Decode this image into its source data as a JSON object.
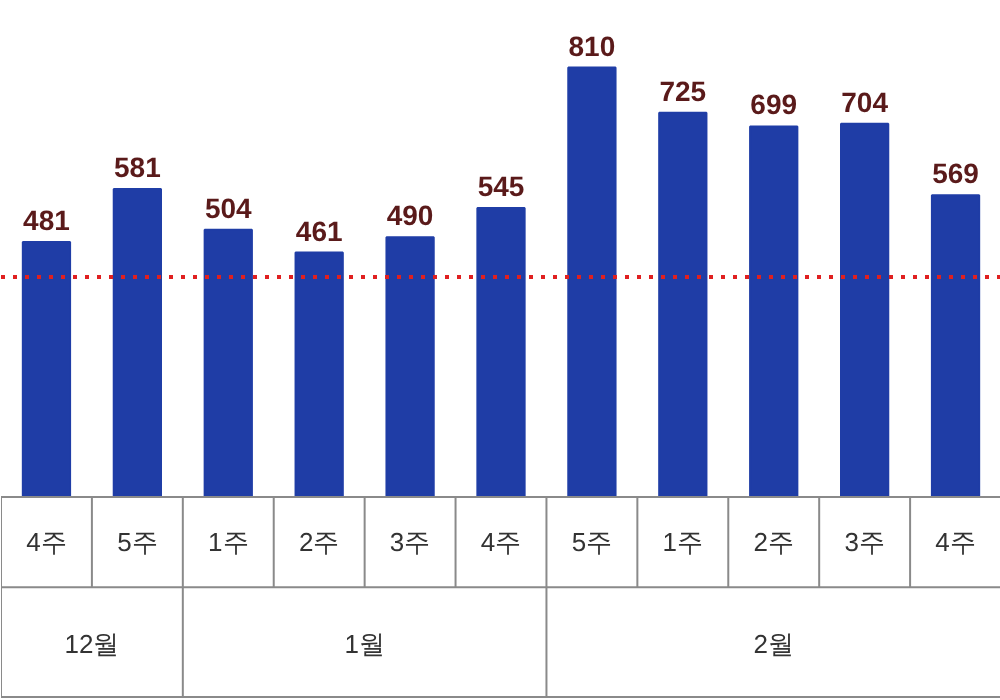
{
  "chart_data": {
    "type": "bar",
    "categories": [
      "4주",
      "5주",
      "1주",
      "2주",
      "3주",
      "4주",
      "5주",
      "1주",
      "2주",
      "3주",
      "4주"
    ],
    "values": [
      481,
      581,
      504,
      461,
      490,
      545,
      810,
      725,
      699,
      704,
      569
    ],
    "color": "#1f3da6",
    "data_labels": true,
    "ref_lines": [
      {
        "axis": "y",
        "value": 415,
        "color": "#e02020",
        "line_style": "dotted"
      }
    ],
    "annotations": [
      "12월",
      "1월",
      "2월"
    ]
  }
}
